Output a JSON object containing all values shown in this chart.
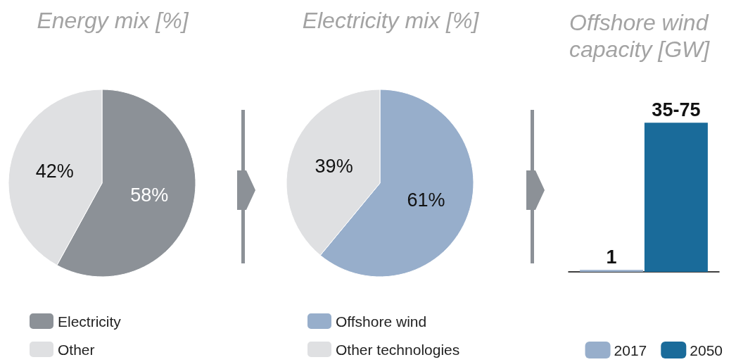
{
  "chart_data": [
    {
      "type": "pie",
      "title": "Energy mix [%]",
      "categories": [
        "Electricity",
        "Other"
      ],
      "values": [
        58,
        42
      ],
      "colors": [
        "#8c9197",
        "#dfe0e2"
      ],
      "value_labels": [
        "58%",
        "42%"
      ],
      "legend": "bottom"
    },
    {
      "type": "pie",
      "title": "Electricity mix [%]",
      "categories": [
        "Offshore wind",
        "Other technologies"
      ],
      "values": [
        61,
        39
      ],
      "colors": [
        "#97aecb",
        "#dfe0e2"
      ],
      "value_labels": [
        "61%",
        "39%"
      ],
      "legend": "bottom"
    },
    {
      "type": "bar",
      "title": "Offshore wind capacity [GW]",
      "categories": [
        null
      ],
      "legend": "bottom",
      "series": [
        {
          "name": "2017",
          "color": "#97aecb",
          "values": [
            1
          ],
          "value_labels": [
            "1"
          ]
        },
        {
          "name": "2050",
          "color": "#1a6b9a",
          "values": [
            75
          ],
          "value_labels": [
            "35-75"
          ]
        }
      ]
    }
  ]
}
